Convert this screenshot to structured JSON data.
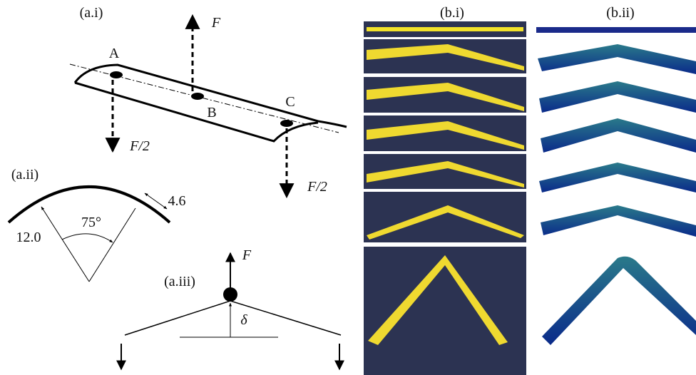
{
  "panel_a": {
    "i": {
      "label": "(a.i)",
      "force": "F",
      "point_a": "A",
      "point_b": "B",
      "point_c": "C",
      "half_force_left": "F/2",
      "half_force_right": "F/2"
    },
    "ii": {
      "label": "(a.ii)",
      "thickness": "4.6",
      "angle": "75°",
      "radius": "12.0"
    },
    "iii": {
      "label": "(a.iii)",
      "force": "F",
      "deflection": "δ"
    }
  },
  "panel_b": {
    "photos_label": "(b.i)",
    "simulation_label": "(b.ii)"
  }
}
